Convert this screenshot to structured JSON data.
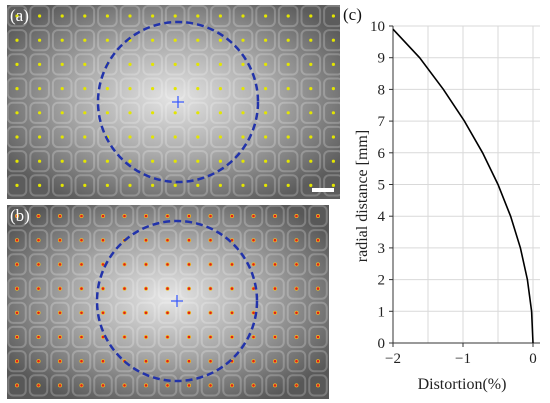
{
  "panels": {
    "a": {
      "label": "(a)"
    },
    "b": {
      "label": "(b)"
    },
    "c": {
      "label": "(c)"
    }
  },
  "colors": {
    "circle": "#2233aa",
    "dot_a": "#e3e600",
    "dot_b": "#e0201a",
    "dot_b_halo": "#f0c020",
    "center_mark": "#3355ff",
    "curve": "#000000",
    "grid": "#d9d9d9"
  },
  "chart_data": {
    "type": "line",
    "xlabel": "Distortion(%)",
    "ylabel": "radial distance [mm]",
    "xlim": [
      -2.0,
      0.1
    ],
    "ylim": [
      0,
      10
    ],
    "x_ticks": [
      -2,
      -1,
      0
    ],
    "y_ticks": [
      0,
      1,
      2,
      3,
      4,
      5,
      6,
      7,
      8,
      9,
      10
    ],
    "grid": true,
    "series": [
      {
        "x": [
          0,
          -0.02,
          -0.08,
          -0.18,
          -0.32,
          -0.5,
          -0.72,
          -0.98,
          -1.28,
          -1.62,
          -2.0
        ],
        "y": [
          0,
          1,
          2,
          3,
          4,
          5,
          6,
          7,
          8,
          9,
          9.9
        ]
      }
    ]
  }
}
